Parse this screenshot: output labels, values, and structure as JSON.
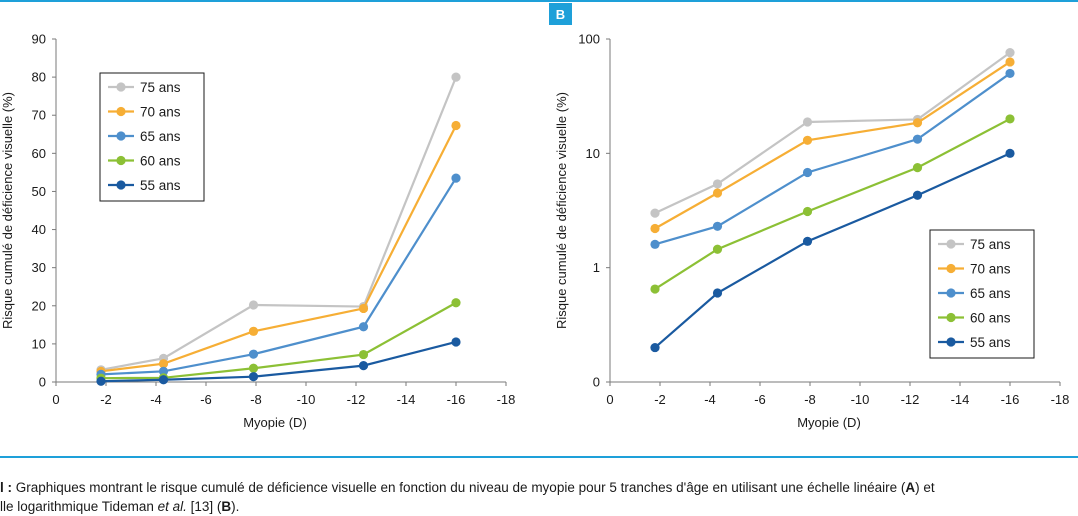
{
  "panel_b_label": "B",
  "caption": {
    "line1_prefix": "l :",
    "line1_text": " Graphiques montrant le risque cumulé de déficience visuelle en fonction du niveau de myopie pour 5 tranches d'âge en utilisant une échelle linéaire (",
    "line1_bold": "A",
    "line1_end": ") et",
    "line2_text": "lle logarithmique Tideman ",
    "line2_italic": "et al.",
    "line2_mid": " [13] (",
    "line2_bold": "B",
    "line2_end": ")."
  },
  "chart_data": [
    {
      "panel": "A",
      "type": "line",
      "scale": "linear",
      "xlabel": "Myopie (D)",
      "ylabel": "Risque cumulé de déficience visuelle (%)",
      "xlim": [
        0,
        -18
      ],
      "ylim": [
        0,
        90
      ],
      "xticks": [
        0,
        -2,
        -4,
        -6,
        -8,
        -10,
        -12,
        -14,
        -16,
        -18
      ],
      "xtick_labels": [
        "0",
        "-2",
        "-4",
        "-6",
        "-8",
        "-10",
        "-12",
        "-14",
        "-16",
        "-18"
      ],
      "yticks": [
        0,
        10,
        20,
        30,
        40,
        50,
        60,
        70,
        80,
        90
      ],
      "ytick_labels": [
        "0",
        "10",
        "20",
        "30",
        "40",
        "50",
        "60",
        "70",
        "80",
        "90"
      ],
      "grid": false,
      "legend_position": "top-left",
      "x": [
        -1.8,
        -4.3,
        -7.9,
        -12.3,
        -16
      ],
      "series": [
        {
          "name": "75 ans",
          "color": "#c4c4c4",
          "values": [
            3.2,
            6.2,
            20.2,
            19.8,
            80
          ]
        },
        {
          "name": "70 ans",
          "color": "#f6ae35",
          "values": [
            2.8,
            4.8,
            13.3,
            19.3,
            67.3
          ]
        },
        {
          "name": "65 ans",
          "color": "#4e8fcc",
          "values": [
            2,
            2.8,
            7.3,
            14.5,
            53.5
          ]
        },
        {
          "name": "60 ans",
          "color": "#8cc035",
          "values": [
            1,
            1.1,
            3.6,
            7.2,
            20.8
          ]
        },
        {
          "name": "55 ans",
          "color": "#1a5aa0",
          "values": [
            0.2,
            0.6,
            1.4,
            4.3,
            10.5
          ]
        }
      ]
    },
    {
      "panel": "B",
      "type": "line",
      "scale": "log",
      "xlabel": "Myopie (D)",
      "ylabel": "Risque cumulé de déficience visuelle (%)",
      "xlim": [
        0,
        -18
      ],
      "ylim": [
        0.1,
        100
      ],
      "xticks": [
        0,
        -2,
        -4,
        -6,
        -8,
        -10,
        -12,
        -14,
        -16,
        -18
      ],
      "xtick_labels": [
        "0",
        "-2",
        "-4",
        "-6",
        "-8",
        "-10",
        "-12",
        "-14",
        "-16",
        "-18"
      ],
      "yticks": [
        0.1,
        1,
        10,
        100
      ],
      "ytick_labels": [
        "0",
        "1",
        "10",
        "100"
      ],
      "grid": false,
      "legend_position": "bottom-right",
      "x": [
        -1.8,
        -4.3,
        -7.9,
        -12.3,
        -16
      ],
      "series": [
        {
          "name": "75 ans",
          "color": "#c4c4c4",
          "values": [
            3,
            5.4,
            18.8,
            19.8,
            76
          ]
        },
        {
          "name": "70 ans",
          "color": "#f6ae35",
          "values": [
            2.2,
            4.5,
            13,
            18.5,
            63
          ]
        },
        {
          "name": "65 ans",
          "color": "#4e8fcc",
          "values": [
            1.6,
            2.3,
            6.8,
            13.3,
            50
          ]
        },
        {
          "name": "60 ans",
          "color": "#8cc035",
          "values": [
            0.65,
            1.45,
            3.1,
            7.5,
            20
          ]
        },
        {
          "name": "55 ans",
          "color": "#1a5aa0",
          "values": [
            0.2,
            0.6,
            1.7,
            4.3,
            10
          ]
        }
      ]
    }
  ]
}
